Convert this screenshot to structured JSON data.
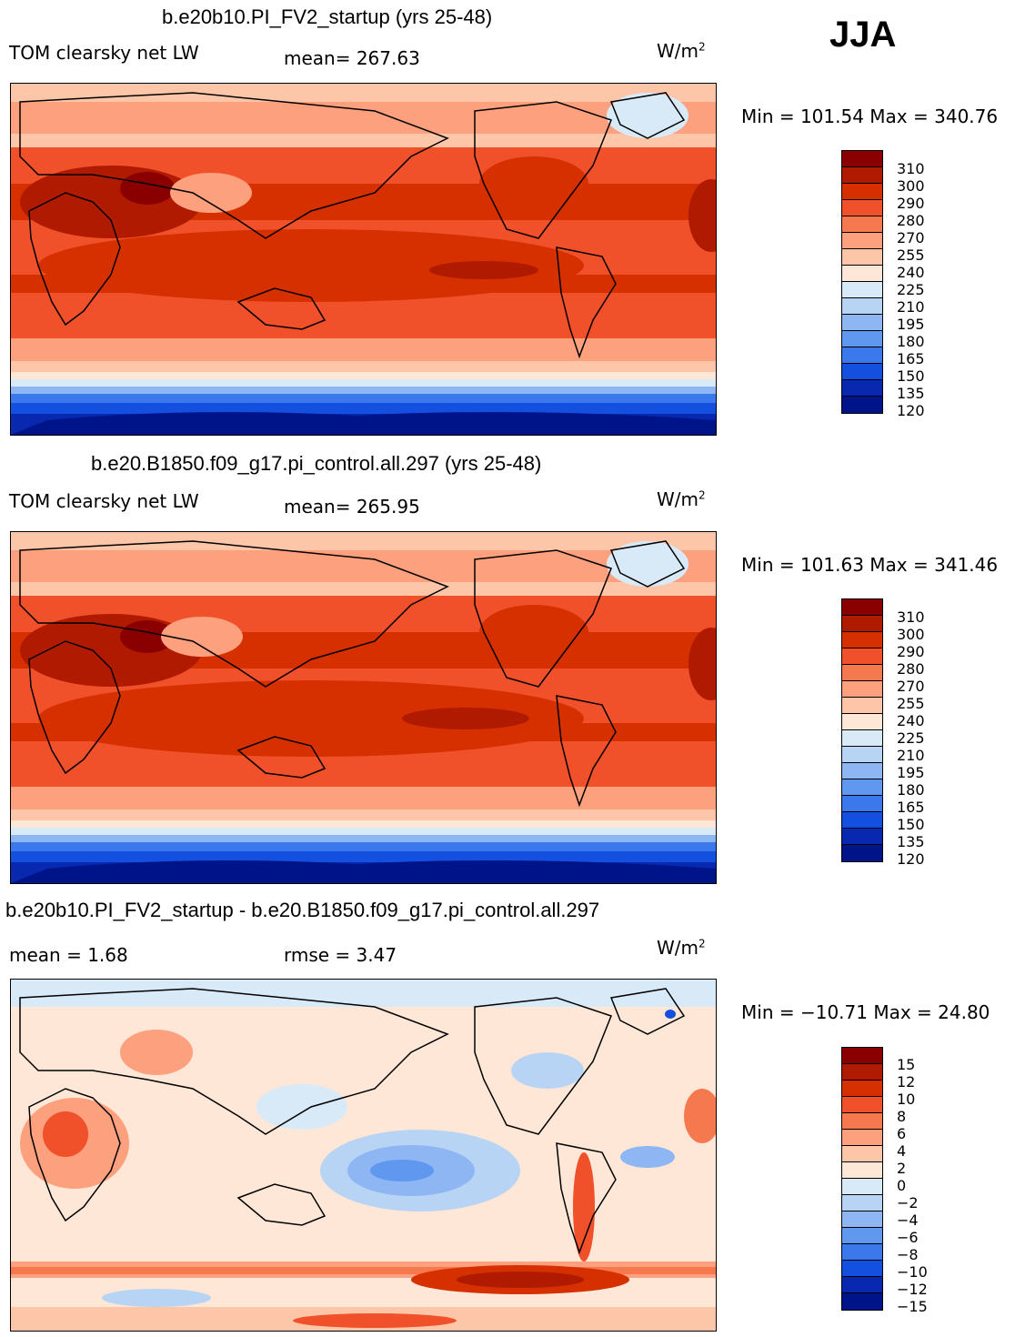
{
  "season": "JJA",
  "panels": [
    {
      "title": "b.e20b10.PI_FV2_startup (yrs 25-48)",
      "variable": "TOM clearsky net LW",
      "stat1": "mean=  267.63",
      "units_base": "W/m",
      "units_exp": "2",
      "minmax": "Min = 101.54  Max = 340.76",
      "colorbar": {
        "labels": [
          "310",
          "300",
          "290",
          "280",
          "270",
          "255",
          "240",
          "225",
          "210",
          "195",
          "180",
          "165",
          "150",
          "135",
          "120"
        ],
        "colors": [
          "#8a0000",
          "#b01a00",
          "#d63000",
          "#f0502a",
          "#f6784e",
          "#fca07e",
          "#fdc6a8",
          "#fee7d6",
          "#d8eaf8",
          "#b8d4f4",
          "#8db6f3",
          "#6098f0",
          "#3a78ec",
          "#1450e0",
          "#0828b0",
          "#00148a"
        ]
      }
    },
    {
      "title": "b.e20.B1850.f09_g17.pi_control.all.297 (yrs 25-48)",
      "variable": "TOM clearsky net LW",
      "stat1": "mean=  265.95",
      "units_base": "W/m",
      "units_exp": "2",
      "minmax": "Min = 101.63  Max = 341.46",
      "colorbar": {
        "labels": [
          "310",
          "300",
          "290",
          "280",
          "270",
          "255",
          "240",
          "225",
          "210",
          "195",
          "180",
          "165",
          "150",
          "135",
          "120"
        ],
        "colors": [
          "#8a0000",
          "#b01a00",
          "#d63000",
          "#f0502a",
          "#f6784e",
          "#fca07e",
          "#fdc6a8",
          "#fee7d6",
          "#d8eaf8",
          "#b8d4f4",
          "#8db6f3",
          "#6098f0",
          "#3a78ec",
          "#1450e0",
          "#0828b0",
          "#00148a"
        ]
      }
    },
    {
      "title": "b.e20b10.PI_FV2_startup - b.e20.B1850.f09_g17.pi_control.all.297",
      "stat1": "mean =    1.68",
      "stat2": "rmse =    3.47",
      "units_base": "W/m",
      "units_exp": "2",
      "minmax": "Min = −10.71  Max =   24.80",
      "colorbar": {
        "labels": [
          "15",
          "12",
          "10",
          "8",
          "6",
          "4",
          "2",
          "0",
          "−2",
          "−4",
          "−6",
          "−8",
          "−10",
          "−12",
          "−15"
        ],
        "colors": [
          "#8a0000",
          "#b01a00",
          "#d63000",
          "#f0502a",
          "#f6784e",
          "#fca07e",
          "#fdc6a8",
          "#fee7d6",
          "#d8eaf8",
          "#b8d4f4",
          "#8db6f3",
          "#6098f0",
          "#3a78ec",
          "#1450e0",
          "#0828b0",
          "#00148a"
        ]
      }
    }
  ]
}
